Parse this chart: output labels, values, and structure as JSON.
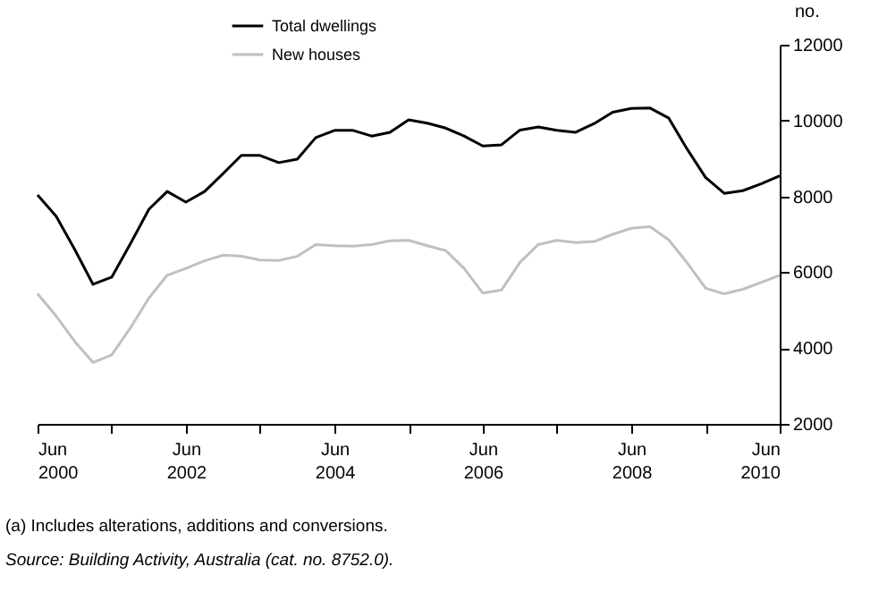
{
  "chart_data": {
    "type": "line",
    "x": [
      "2000-06",
      "2000-09",
      "2000-12",
      "2001-03",
      "2001-06",
      "2001-09",
      "2001-12",
      "2002-03",
      "2002-06",
      "2002-09",
      "2002-12",
      "2003-03",
      "2003-06",
      "2003-09",
      "2003-12",
      "2004-03",
      "2004-06",
      "2004-09",
      "2004-12",
      "2005-03",
      "2005-06",
      "2005-09",
      "2005-12",
      "2006-03",
      "2006-06",
      "2006-09",
      "2006-12",
      "2007-03",
      "2007-06",
      "2007-09",
      "2007-12",
      "2008-03",
      "2008-06",
      "2008-09",
      "2008-12",
      "2009-03",
      "2009-06",
      "2009-09",
      "2009-12",
      "2010-03",
      "2010-06"
    ],
    "series": [
      {
        "name": "Total dwellings",
        "color": "#000000",
        "values": [
          8040,
          7470,
          6600,
          5680,
          5870,
          6750,
          7660,
          8130,
          7850,
          8130,
          8600,
          9080,
          9080,
          8890,
          8980,
          9550,
          9740,
          9740,
          9590,
          9690,
          10020,
          9930,
          9800,
          9590,
          9330,
          9360,
          9750,
          9830,
          9740,
          9690,
          9920,
          10220,
          10320,
          10330,
          10070,
          9260,
          8500,
          8080,
          8150,
          8330,
          8540
        ]
      },
      {
        "name": "New houses",
        "color": "#c0c0c0",
        "values": [
          5430,
          4840,
          4170,
          3620,
          3820,
          4530,
          5320,
          5920,
          6100,
          6300,
          6450,
          6420,
          6320,
          6310,
          6420,
          6730,
          6700,
          6690,
          6730,
          6830,
          6840,
          6700,
          6570,
          6100,
          5450,
          5530,
          6260,
          6730,
          6840,
          6780,
          6810,
          7000,
          7160,
          7200,
          6860,
          6260,
          5580,
          5430,
          5550,
          5730,
          5920
        ]
      }
    ],
    "xlim": [
      "2000-06",
      "2010-06"
    ],
    "xticks": [
      {
        "value": "2000-06",
        "label": "Jun 2000"
      },
      {
        "value": "2001-06",
        "label": null
      },
      {
        "value": "2002-06",
        "label": "Jun 2002"
      },
      {
        "value": "2003-06",
        "label": null
      },
      {
        "value": "2004-06",
        "label": "Jun 2004"
      },
      {
        "value": "2005-06",
        "label": null
      },
      {
        "value": "2006-06",
        "label": "Jun 2006"
      },
      {
        "value": "2007-06",
        "label": null
      },
      {
        "value": "2008-06",
        "label": "Jun 2008"
      },
      {
        "value": "2009-06",
        "label": null
      },
      {
        "value": "2010-06",
        "label": "Jun 2010"
      }
    ],
    "ylim": [
      2000,
      12000
    ],
    "yticks": [
      2000,
      4000,
      6000,
      8000,
      10000,
      12000
    ],
    "ylabel": "no.",
    "legend": "top",
    "grid": false,
    "annotations": [
      "(a) Includes alterations, additions and conversions.",
      "Source: Building Activity, Australia (cat. no. 8752.0)."
    ]
  }
}
